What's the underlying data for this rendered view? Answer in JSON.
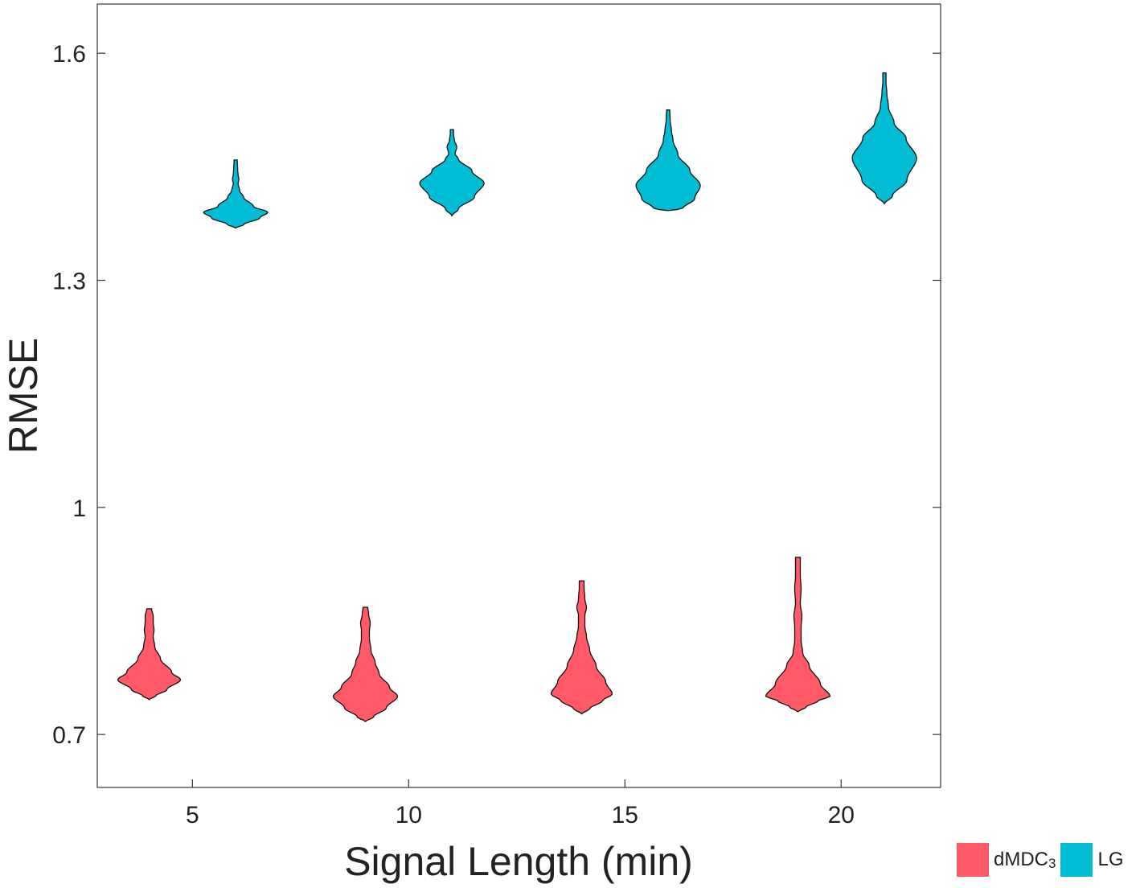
{
  "chart_data": {
    "type": "violin",
    "xlabel": "Signal Length (min)",
    "ylabel": "RMSE",
    "x_ticks": [
      "5",
      "10",
      "15",
      "20"
    ],
    "y_ticks": [
      "0.7",
      "1",
      "1.3",
      "1.6"
    ],
    "xlim": [
      2.8,
      22.3
    ],
    "ylim": [
      0.63,
      1.665
    ],
    "grid": false,
    "legend_position": "bottom-right",
    "series": [
      {
        "name": "dMDC3",
        "color": "#ff5a66",
        "groups": [
          {
            "signal_length": 5,
            "min": 0.746,
            "max": 0.866,
            "mode": 0.777
          },
          {
            "signal_length": 10,
            "min": 0.717,
            "max": 0.868,
            "mode": 0.75
          },
          {
            "signal_length": 15,
            "min": 0.727,
            "max": 0.903,
            "mode": 0.753
          },
          {
            "signal_length": 20,
            "min": 0.73,
            "max": 0.934,
            "mode": 0.75
          }
        ]
      },
      {
        "name": "LG",
        "color": "#00bcd4",
        "groups": [
          {
            "signal_length": 5,
            "min": 1.369,
            "max": 1.459,
            "mode": 1.389
          },
          {
            "signal_length": 10,
            "min": 1.385,
            "max": 1.499,
            "mode": 1.427
          },
          {
            "signal_length": 15,
            "min": 1.392,
            "max": 1.525,
            "mode": 1.427
          },
          {
            "signal_length": 20,
            "min": 1.401,
            "max": 1.574,
            "mode": 1.465
          }
        ]
      }
    ]
  },
  "legend": [
    {
      "label_main": "dMDC",
      "label_sub": "3",
      "color": "#ff5a66"
    },
    {
      "label_main": "LG",
      "label_sub": "",
      "color": "#00bcd4"
    }
  ]
}
